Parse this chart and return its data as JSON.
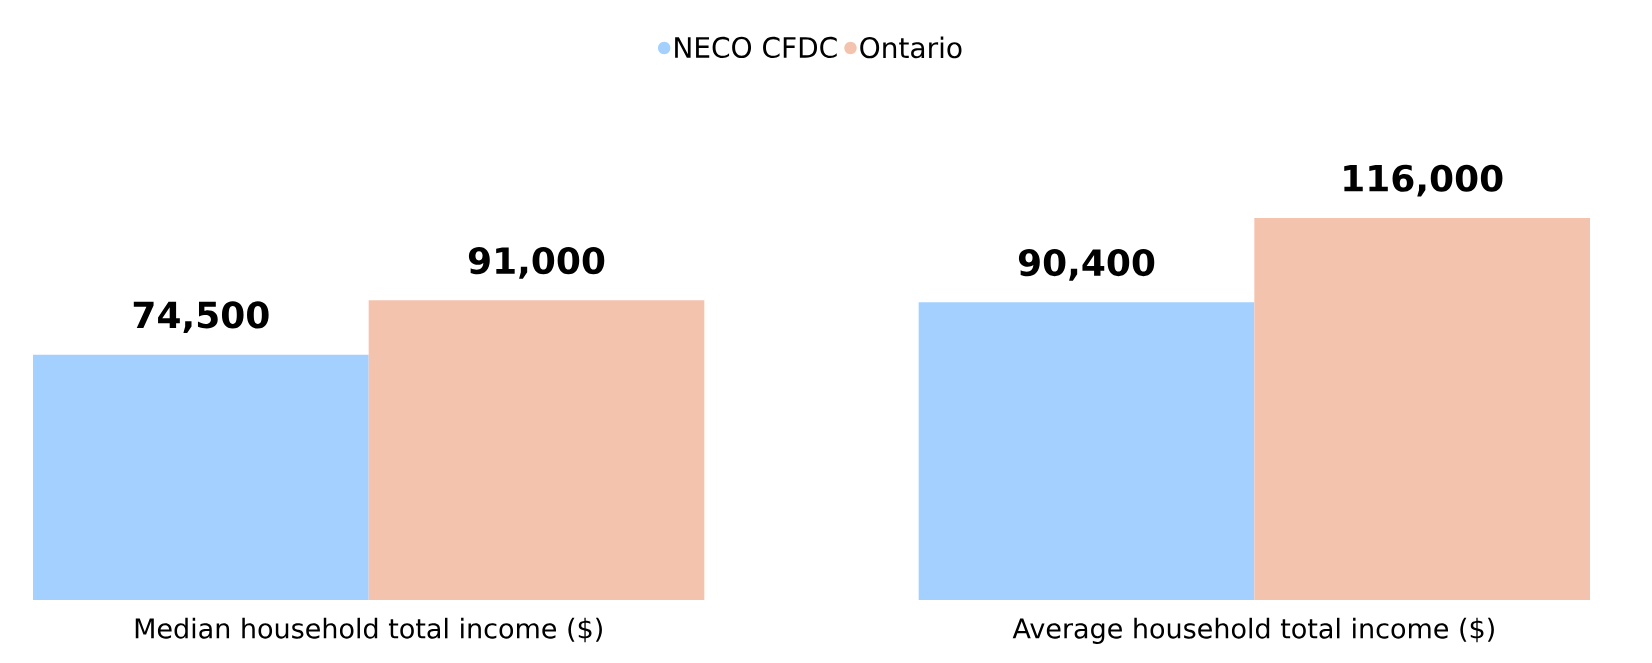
{
  "chart_data": {
    "type": "bar",
    "categories": [
      "Median household total income ($)",
      "Average household total income ($)"
    ],
    "series": [
      {
        "name": "NECO CFDC",
        "color": "#a3d0fe",
        "values": [
          74500,
          90400
        ],
        "value_labels": [
          "74,500",
          "90,400"
        ]
      },
      {
        "name": "Ontario",
        "color": "#f4c3ae",
        "values": [
          91000,
          116000
        ],
        "value_labels": [
          "91,000",
          "116,000"
        ]
      }
    ],
    "legend": "top"
  }
}
